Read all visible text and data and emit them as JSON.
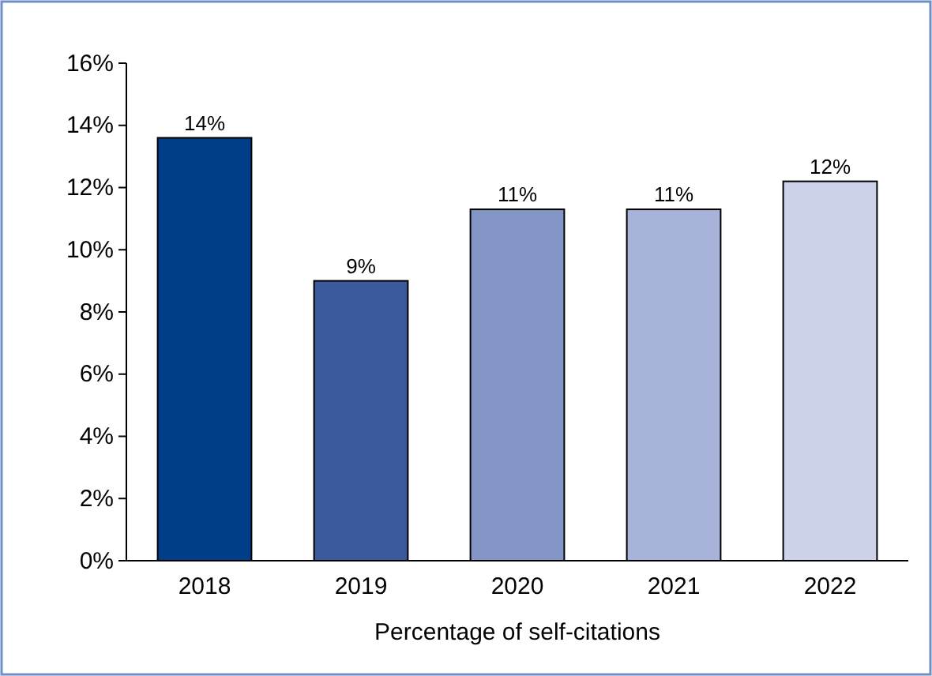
{
  "chart_data": {
    "type": "bar",
    "xlabel": "Percentage of self-citations",
    "categories": [
      "2018",
      "2019",
      "2020",
      "2021",
      "2022"
    ],
    "values": [
      13.6,
      9.0,
      11.3,
      11.3,
      12.2
    ],
    "value_labels": [
      "14%",
      "9%",
      "11%",
      "11%",
      "12%"
    ],
    "colors": [
      "#003f87",
      "#3a5a9b",
      "#8496c6",
      "#a8b3d9",
      "#ccd2ea"
    ],
    "ylim": [
      0,
      16
    ],
    "yticks": [
      {
        "value": 0,
        "label": "0%"
      },
      {
        "value": 2,
        "label": "2%"
      },
      {
        "value": 4,
        "label": "4%"
      },
      {
        "value": 6,
        "label": "6%"
      },
      {
        "value": 8,
        "label": "8%"
      },
      {
        "value": 10,
        "label": "10%"
      },
      {
        "value": 12,
        "label": "12%"
      },
      {
        "value": 14,
        "label": "14%"
      },
      {
        "value": 16,
        "label": "16%"
      }
    ],
    "grid": false
  }
}
